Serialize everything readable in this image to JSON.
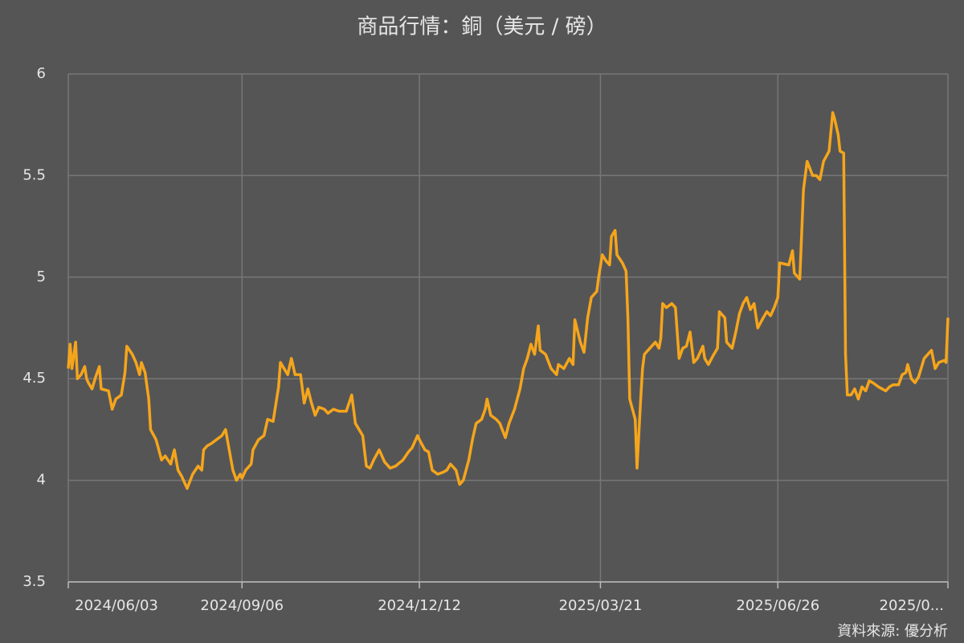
{
  "chart_data": {
    "type": "line",
    "title": "商品行情：銅（美元 / 磅）",
    "source": "資料來源: 優分析",
    "x": [
      "2024/06/03",
      "2024/06/04",
      "2024/06/05",
      "2024/06/07",
      "2024/06/08",
      "2024/06/10",
      "2024/06/12",
      "2024/06/13",
      "2024/06/14",
      "2024/06/16",
      "2024/06/18",
      "2024/06/20",
      "2024/06/21",
      "2024/06/25",
      "2024/06/27",
      "2024/06/29",
      "2024/07/02",
      "2024/07/04",
      "2024/07/05",
      "2024/07/08",
      "2024/07/10",
      "2024/07/12",
      "2024/07/13",
      "2024/07/15",
      "2024/07/17",
      "2024/07/18",
      "2024/07/21",
      "2024/07/24",
      "2024/07/26",
      "2024/07/29",
      "2024/07/31",
      "2024/08/02",
      "2024/08/04",
      "2024/08/07",
      "2024/08/10",
      "2024/08/13",
      "2024/08/15",
      "2024/08/16",
      "2024/08/18",
      "2024/08/20",
      "2024/08/23",
      "2024/08/26",
      "2024/08/28",
      "2024/08/30",
      "2024/09/01",
      "2024/09/03",
      "2024/09/05",
      "2024/09/06",
      "2024/09/08",
      "2024/09/11",
      "2024/09/12",
      "2024/09/15",
      "2024/09/18",
      "2024/09/20",
      "2024/09/23",
      "2024/09/26",
      "2024/09/27",
      "2024/09/29",
      "2024/10/01",
      "2024/10/03",
      "2024/10/05",
      "2024/10/08",
      "2024/10/10",
      "2024/10/12",
      "2024/10/14",
      "2024/10/16",
      "2024/10/18",
      "2024/10/21",
      "2024/10/23",
      "2024/10/26",
      "2024/10/29",
      "2024/11/02",
      "2024/11/05",
      "2024/11/07",
      "2024/11/11",
      "2024/11/13",
      "2024/11/15",
      "2024/11/17",
      "2024/11/20",
      "2024/11/23",
      "2024/11/26",
      "2024/11/29",
      "2024/12/03",
      "2024/12/06",
      "2024/12/08",
      "2024/12/11",
      "2024/12/12",
      "2024/12/15",
      "2024/12/17",
      "2024/12/19",
      "2024/12/22",
      "2024/12/25",
      "2024/12/27",
      "2024/12/29",
      "2025/01/01",
      "2025/01/03",
      "2025/01/05",
      "2025/01/08",
      "2025/01/10",
      "2025/01/12",
      "2025/01/15",
      "2025/01/17",
      "2025/01/18",
      "2025/01/20",
      "2025/01/23",
      "2025/01/25",
      "2025/01/28",
      "2025/01/30",
      "2025/02/02",
      "2025/02/05",
      "2025/02/07",
      "2025/02/09",
      "2025/02/11",
      "2025/02/13",
      "2025/02/15",
      "2025/02/16",
      "2025/02/19",
      "2025/02/22",
      "2025/02/25",
      "2025/02/26",
      "2025/03/01",
      "2025/03/04",
      "2025/03/06",
      "2025/03/07",
      "2025/03/10",
      "2025/03/12",
      "2025/03/14",
      "2025/03/16",
      "2025/03/19",
      "2025/03/20",
      "2025/03/22",
      "2025/03/24",
      "2025/03/26",
      "2025/03/27",
      "2025/03/29",
      "2025/03/30",
      "2025/04/02",
      "2025/04/04",
      "2025/04/05",
      "2025/04/06",
      "2025/04/09",
      "2025/04/10",
      "2025/04/12",
      "2025/04/13",
      "2025/04/14",
      "2025/04/17",
      "2025/04/20",
      "2025/04/22",
      "2025/04/23",
      "2025/04/24",
      "2025/04/26",
      "2025/04/29",
      "2025/05/01",
      "2025/05/03",
      "2025/05/05",
      "2025/05/07",
      "2025/05/09",
      "2025/05/11",
      "2025/05/13",
      "2025/05/16",
      "2025/05/17",
      "2025/05/19",
      "2025/05/22",
      "2025/05/24",
      "2025/05/25",
      "2025/05/28",
      "2025/05/29",
      "2025/06/01",
      "2025/06/03",
      "2025/06/05",
      "2025/06/07",
      "2025/06/09",
      "2025/06/11",
      "2025/06/13",
      "2025/06/15",
      "2025/06/18",
      "2025/06/20",
      "2025/06/22",
      "2025/06/24",
      "2025/06/26",
      "2025/06/27",
      "2025/07/02",
      "2025/07/04",
      "2025/07/05",
      "2025/07/08",
      "2025/07/10",
      "2025/07/12",
      "2025/07/15",
      "2025/07/17",
      "2025/07/19",
      "2025/07/21",
      "2025/07/24",
      "2025/07/26",
      "2025/07/27",
      "2025/07/29",
      "2025/07/30",
      "2025/08/01",
      "2025/08/02",
      "2025/08/03",
      "2025/08/05",
      "2025/08/07",
      "2025/08/09",
      "2025/08/11",
      "2025/08/13",
      "2025/08/15",
      "2025/08/17",
      "2025/08/20",
      "2025/08/22",
      "2025/08/24",
      "2025/08/26",
      "2025/08/28",
      "2025/08/31",
      "2025/09/02",
      "2025/09/04",
      "2025/09/05",
      "2025/09/07",
      "2025/09/09",
      "2025/09/11",
      "2025/09/14",
      "2025/09/16",
      "2025/09/18",
      "2025/09/20",
      "2025/09/22",
      "2025/09/25",
      "2025/09/26",
      "2025/09/27"
    ],
    "series": [
      {
        "color": "#f5a51c",
        "values": [
          4.55,
          4.67,
          4.55,
          4.68,
          4.5,
          4.52,
          4.56,
          4.5,
          4.48,
          4.45,
          4.51,
          4.56,
          4.45,
          4.44,
          4.35,
          4.4,
          4.42,
          4.53,
          4.66,
          4.62,
          4.58,
          4.52,
          4.58,
          4.53,
          4.4,
          4.25,
          4.2,
          4.1,
          4.12,
          4.08,
          4.15,
          4.05,
          4.02,
          3.96,
          4.03,
          4.07,
          4.05,
          4.15,
          4.17,
          4.18,
          4.2,
          4.22,
          4.25,
          4.15,
          4.05,
          4.0,
          4.03,
          4.01,
          4.05,
          4.08,
          4.15,
          4.2,
          4.22,
          4.3,
          4.29,
          4.46,
          4.58,
          4.55,
          4.52,
          4.6,
          4.52,
          4.52,
          4.38,
          4.45,
          4.38,
          4.32,
          4.36,
          4.35,
          4.33,
          4.35,
          4.34,
          4.34,
          4.42,
          4.28,
          4.22,
          4.07,
          4.06,
          4.1,
          4.15,
          4.09,
          4.06,
          4.07,
          4.1,
          4.14,
          4.16,
          4.22,
          4.2,
          4.15,
          4.14,
          4.05,
          4.03,
          4.04,
          4.05,
          4.08,
          4.05,
          3.98,
          4.0,
          4.1,
          4.2,
          4.28,
          4.3,
          4.35,
          4.4,
          4.32,
          4.3,
          4.28,
          4.21,
          4.28,
          4.35,
          4.45,
          4.55,
          4.6,
          4.67,
          4.62,
          4.76,
          4.64,
          4.62,
          4.55,
          4.52,
          4.57,
          4.55,
          4.6,
          4.57,
          4.79,
          4.68,
          4.63,
          4.8,
          4.9,
          4.93,
          5.0,
          5.11,
          5.08,
          5.06,
          5.2,
          5.23,
          5.11,
          5.07,
          5.03,
          4.8,
          4.4,
          4.3,
          4.06,
          4.4,
          4.55,
          4.62,
          4.65,
          4.68,
          4.65,
          4.7,
          4.87,
          4.85,
          4.87,
          4.85,
          4.6,
          4.65,
          4.66,
          4.73,
          4.58,
          4.6,
          4.66,
          4.6,
          4.57,
          4.62,
          4.65,
          4.83,
          4.8,
          4.68,
          4.65,
          4.73,
          4.82,
          4.87,
          4.9,
          4.84,
          4.87,
          4.75,
          4.8,
          4.83,
          4.81,
          4.85,
          4.9,
          5.07,
          5.06,
          5.13,
          5.02,
          4.99,
          5.43,
          5.57,
          5.5,
          5.5,
          5.48,
          5.57,
          5.62,
          5.81,
          5.78,
          5.7,
          5.62,
          5.61,
          4.62,
          4.42,
          4.42,
          4.45,
          4.4,
          4.46,
          4.44,
          4.49,
          4.48,
          4.46,
          4.45,
          4.44,
          4.46,
          4.47,
          4.47,
          4.52,
          4.53,
          4.57,
          4.5,
          4.48,
          4.51,
          4.6,
          4.62,
          4.64,
          4.55,
          4.58,
          4.59,
          4.58,
          4.8
        ]
      }
    ],
    "xlim": [
      "2024/06/03",
      "2025/09/27"
    ],
    "xticks": [
      "2024/06/03",
      "2024/09/06",
      "2024/12/12",
      "2025/03/21",
      "2025/06/26",
      {
        "value": "2025/09/27",
        "label": "2025/0..."
      }
    ],
    "ylim": [
      3.5,
      6
    ],
    "yticks": [
      3.5,
      4,
      4.5,
      5,
      5.5,
      6
    ],
    "grid": true
  }
}
